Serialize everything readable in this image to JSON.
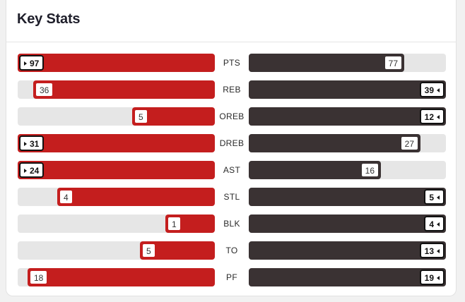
{
  "title": "Key Stats",
  "colors": {
    "left_team": "#c41e1e",
    "right_team": "#3a3233",
    "track": "#e6e6e6"
  },
  "stats": [
    {
      "label": "PTS",
      "left": "97",
      "right": "77",
      "left_fraction": 1.0,
      "right_fraction": 0.79,
      "leader": "left"
    },
    {
      "label": "REB",
      "left": "36",
      "right": "39",
      "left_fraction": 0.92,
      "right_fraction": 1.0,
      "leader": "right"
    },
    {
      "label": "OREB",
      "left": "5",
      "right": "12",
      "left_fraction": 0.42,
      "right_fraction": 1.0,
      "leader": "right"
    },
    {
      "label": "DREB",
      "left": "31",
      "right": "27",
      "left_fraction": 1.0,
      "right_fraction": 0.87,
      "leader": "left"
    },
    {
      "label": "AST",
      "left": "24",
      "right": "16",
      "left_fraction": 1.0,
      "right_fraction": 0.67,
      "leader": "left"
    },
    {
      "label": "STL",
      "left": "4",
      "right": "5",
      "left_fraction": 0.8,
      "right_fraction": 1.0,
      "leader": "right"
    },
    {
      "label": "BLK",
      "left": "1",
      "right": "4",
      "left_fraction": 0.25,
      "right_fraction": 1.0,
      "leader": "right"
    },
    {
      "label": "TO",
      "left": "5",
      "right": "13",
      "left_fraction": 0.38,
      "right_fraction": 1.0,
      "leader": "right"
    },
    {
      "label": "PF",
      "left": "18",
      "right": "19",
      "left_fraction": 0.95,
      "right_fraction": 1.0,
      "leader": "right"
    }
  ]
}
